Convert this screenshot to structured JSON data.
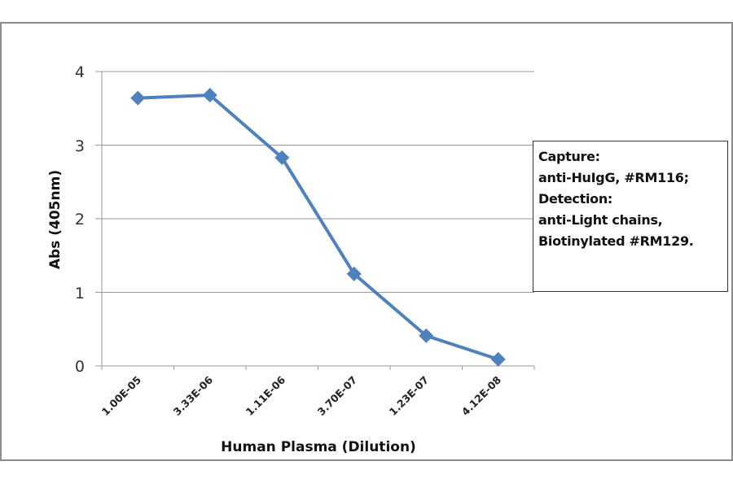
{
  "chart_data": {
    "type": "line",
    "title": "",
    "xlabel": "Human Plasma (Dilution)",
    "ylabel": "Abs (405nm)",
    "categories": [
      "1.00E-05",
      "3.33E-06",
      "1.11E-06",
      "3.70E-07",
      "1.23E-07",
      "4.12E-08"
    ],
    "series": [
      {
        "name": "Abs (405nm)",
        "values": [
          3.64,
          3.68,
          2.83,
          1.25,
          0.41,
          0.09
        ],
        "color": "#4f81bd",
        "marker": "diamond"
      }
    ],
    "ylim": [
      0,
      4
    ],
    "yticks": [
      "0",
      "1",
      "2",
      "3",
      "4"
    ],
    "grid": "horizontal",
    "legend": "none",
    "annotation": [
      "Capture:",
      "anti-HuIgG, #RM116;",
      "Detection:",
      "anti-Light chains,",
      "Biotinylated #RM129."
    ]
  }
}
